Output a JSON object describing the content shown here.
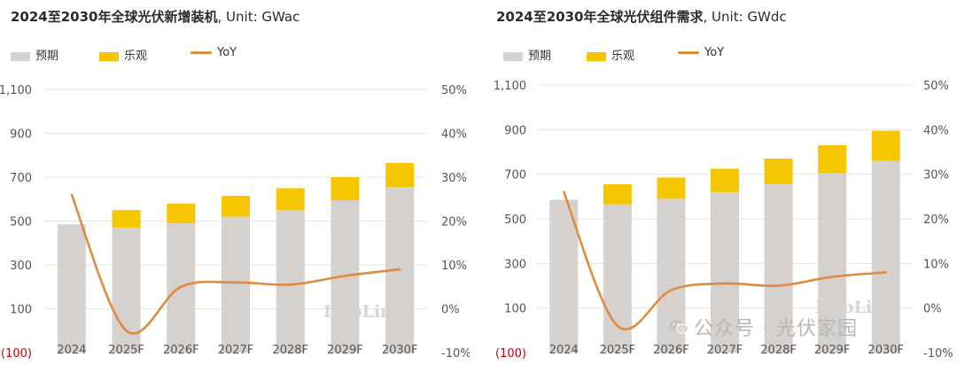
{
  "chart_data": [
    {
      "type": "bar",
      "title_main": "2024至2030年全球光伏新增装机",
      "title_unit": ", Unit: GWac",
      "categories": [
        "2024",
        "2025F",
        "2026F",
        "2027F",
        "2028F",
        "2029F",
        "2030F"
      ],
      "series": [
        {
          "name": "预期",
          "type": "bar",
          "stack": "total",
          "color": "#d4d1cf",
          "values": [
            485,
            470,
            490,
            520,
            550,
            595,
            655
          ]
        },
        {
          "name": "乐观",
          "type": "bar",
          "stack": "total",
          "color": "#f5c600",
          "values": [
            0,
            80,
            90,
            95,
            100,
            105,
            110
          ]
        },
        {
          "name": "YoY",
          "type": "line",
          "axis": "right",
          "color": "#e08a3c",
          "values": [
            26,
            -5,
            5,
            6,
            5.5,
            7.5,
            9
          ]
        }
      ],
      "left_axis": {
        "ylim": [
          -100,
          1100
        ],
        "ticks": [
          "(100)",
          "100",
          "300",
          "500",
          "700",
          "900",
          "1,100"
        ],
        "tick_values": [
          -100,
          100,
          300,
          500,
          700,
          900,
          1100
        ]
      },
      "right_axis": {
        "ylim": [
          -10,
          50
        ],
        "ticks": [
          "-10%",
          "0%",
          "10%",
          "20%",
          "30%",
          "40%",
          "50%"
        ],
        "tick_values": [
          -10,
          0,
          10,
          20,
          30,
          40,
          50
        ]
      },
      "watermark": "InfoLink",
      "grid": true,
      "legend_position": "top-left"
    },
    {
      "type": "bar",
      "title_main": "2024至2030年全球光伏组件需求",
      "title_unit": ", Unit: GWdc",
      "categories": [
        "2024",
        "2025F",
        "2026F",
        "2027F",
        "2028F",
        "2029F",
        "2030F"
      ],
      "series": [
        {
          "name": "预期",
          "type": "bar",
          "stack": "total",
          "color": "#d4d1cf",
          "values": [
            585,
            565,
            590,
            620,
            655,
            705,
            760
          ]
        },
        {
          "name": "乐观",
          "type": "bar",
          "stack": "total",
          "color": "#f5c600",
          "values": [
            0,
            90,
            95,
            105,
            115,
            125,
            135
          ]
        },
        {
          "name": "YoY",
          "type": "line",
          "axis": "right",
          "color": "#e08a3c",
          "values": [
            26,
            -4,
            4,
            5.5,
            5,
            7,
            8
          ]
        }
      ],
      "left_axis": {
        "ylim": [
          -100,
          1100
        ],
        "ticks": [
          "(100)",
          "100",
          "300",
          "500",
          "700",
          "900",
          "1,100"
        ],
        "tick_values": [
          -100,
          100,
          300,
          500,
          700,
          900,
          1100
        ]
      },
      "right_axis": {
        "ylim": [
          -10,
          50
        ],
        "ticks": [
          "-10%",
          "0%",
          "10%",
          "20%",
          "30%",
          "40%",
          "50%"
        ],
        "tick_values": [
          -10,
          0,
          10,
          20,
          30,
          40,
          50
        ]
      },
      "watermark": "InfoLink",
      "grid": true,
      "legend_position": "top-left"
    }
  ],
  "footer_watermark": "公众号 · 光伏家园"
}
